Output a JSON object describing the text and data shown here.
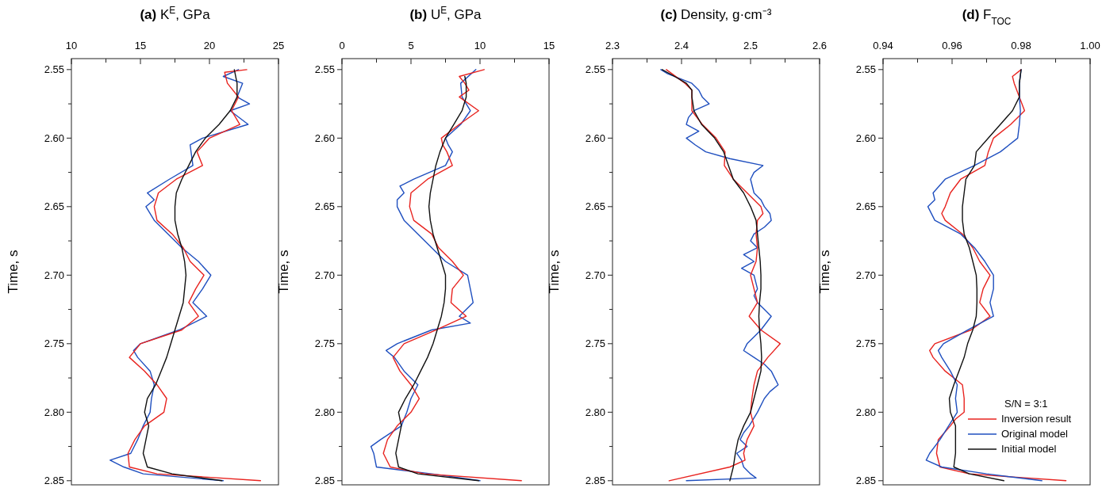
{
  "chart_data": [
    {
      "type": "line",
      "title": "(a) K$^{E}$, GPa",
      "ylabel": "Time, s",
      "xlim": [
        10,
        25
      ],
      "xticks": [
        10,
        {
          "value": 12.5,
          "label": null
        },
        15,
        {
          "value": 17.5,
          "label": null
        },
        20,
        {
          "value": 22.5,
          "label": null
        },
        25
      ],
      "ylim": [
        2.853,
        2.542
      ],
      "yticks": [
        2.55,
        {
          "value": 2.575,
          "label": null
        },
        {
          "value": 2.6,
          "label": "2.60"
        },
        {
          "value": 2.625,
          "label": null
        },
        2.65,
        {
          "value": 2.675,
          "label": null
        },
        {
          "value": 2.7,
          "label": "2.70"
        },
        {
          "value": 2.725,
          "label": null
        },
        2.75,
        {
          "value": 2.775,
          "label": null
        },
        {
          "value": 2.8,
          "label": "2.80"
        },
        {
          "value": 2.825,
          "label": null
        },
        2.85
      ],
      "series": [
        {
          "color": "#1f4fbf",
          "values": [
            2.55,
            2.555,
            2.56,
            2.57,
            2.575,
            2.58,
            2.59,
            2.6,
            2.605,
            2.62,
            2.63,
            2.64,
            2.645,
            2.65,
            2.66,
            2.67,
            2.68,
            2.69,
            2.7,
            2.71,
            2.72,
            2.73,
            2.74,
            2.75,
            2.755,
            2.76,
            2.77,
            2.78,
            2.79,
            2.8,
            2.81,
            2.82,
            2.83,
            2.835,
            2.84,
            2.845,
            2.85
          ],
          "x": [
            22.1,
            21.0,
            22.4,
            22.0,
            22.9,
            21.5,
            22.8,
            19.5,
            18.6,
            18.8,
            17.1,
            15.5,
            16.0,
            15.4,
            16.0,
            17.0,
            18.0,
            19.2,
            20.1,
            19.5,
            18.8,
            19.8,
            17.8,
            15.0,
            14.5,
            14.8,
            15.7,
            16.0,
            15.8,
            15.7,
            15.2,
            14.8,
            14.3,
            12.8,
            13.8,
            15.2,
            21.0
          ]
        },
        {
          "color": "#e8231f",
          "values": [
            2.55,
            2.552,
            2.56,
            2.57,
            2.58,
            2.59,
            2.6,
            2.61,
            2.62,
            2.63,
            2.64,
            2.65,
            2.66,
            2.67,
            2.68,
            2.69,
            2.7,
            2.71,
            2.72,
            2.73,
            2.74,
            2.75,
            2.76,
            2.77,
            2.78,
            2.79,
            2.8,
            2.81,
            2.82,
            2.83,
            2.84,
            2.845,
            2.85
          ],
          "x": [
            22.7,
            21.1,
            21.3,
            22.1,
            21.6,
            22.2,
            20.0,
            19.1,
            19.5,
            17.6,
            16.3,
            16.0,
            16.2,
            17.3,
            18.1,
            18.6,
            19.6,
            19.0,
            18.5,
            19.2,
            18.0,
            15.0,
            14.2,
            15.3,
            16.2,
            16.9,
            16.7,
            15.3,
            14.6,
            14.1,
            14.2,
            16.2,
            23.7
          ]
        },
        {
          "color": "#111111",
          "values": [
            2.55,
            2.56,
            2.57,
            2.58,
            2.59,
            2.6,
            2.61,
            2.62,
            2.63,
            2.64,
            2.65,
            2.66,
            2.67,
            2.68,
            2.69,
            2.7,
            2.71,
            2.72,
            2.73,
            2.74,
            2.75,
            2.76,
            2.77,
            2.78,
            2.79,
            2.8,
            2.81,
            2.82,
            2.83,
            2.84,
            2.845,
            2.85
          ],
          "x": [
            21.8,
            22.0,
            22.0,
            21.5,
            20.7,
            19.7,
            19.0,
            18.5,
            18.0,
            17.6,
            17.5,
            17.5,
            17.7,
            18.0,
            18.2,
            18.3,
            18.2,
            18.1,
            17.8,
            17.5,
            17.2,
            16.9,
            16.5,
            16.1,
            15.5,
            15.3,
            15.6,
            15.4,
            15.2,
            15.5,
            17.3,
            20.9
          ]
        }
      ]
    },
    {
      "type": "line",
      "title": "(b) U$^{E}$, GPa",
      "ylabel": "Time, s",
      "xlim": [
        0,
        15
      ],
      "xticks": [
        0,
        {
          "value": 2.5,
          "label": null
        },
        5,
        {
          "value": 7.5,
          "label": null
        },
        10,
        {
          "value": 12.5,
          "label": null
        },
        15
      ],
      "ylim": [
        2.853,
        2.542
      ],
      "yticks": [
        2.55,
        {
          "value": 2.575,
          "label": null
        },
        {
          "value": 2.6,
          "label": "2.60"
        },
        {
          "value": 2.625,
          "label": null
        },
        2.65,
        {
          "value": 2.675,
          "label": null
        },
        {
          "value": 2.7,
          "label": "2.70"
        },
        {
          "value": 2.725,
          "label": null
        },
        2.75,
        {
          "value": 2.775,
          "label": null
        },
        {
          "value": 2.8,
          "label": "2.80"
        },
        {
          "value": 2.825,
          "label": null
        },
        2.85
      ],
      "series": [
        {
          "color": "#1f4fbf",
          "values": [
            2.55,
            2.56,
            2.57,
            2.58,
            2.59,
            2.6,
            2.605,
            2.61,
            2.62,
            2.63,
            2.635,
            2.64,
            2.645,
            2.65,
            2.66,
            2.67,
            2.68,
            2.69,
            2.7,
            2.71,
            2.72,
            2.73,
            2.735,
            2.74,
            2.75,
            2.755,
            2.76,
            2.77,
            2.78,
            2.79,
            2.8,
            2.81,
            2.82,
            2.825,
            2.83,
            2.84,
            2.845,
            2.85
          ],
          "x": [
            9.7,
            8.6,
            8.7,
            9.3,
            8.6,
            7.5,
            7.7,
            8.0,
            7.5,
            5.2,
            4.2,
            4.5,
            4.0,
            4.0,
            4.5,
            5.5,
            6.5,
            7.5,
            9.1,
            9.3,
            9.5,
            8.5,
            9.3,
            6.5,
            4.0,
            3.2,
            3.8,
            4.5,
            5.5,
            5.0,
            4.7,
            4.3,
            2.8,
            2.1,
            2.3,
            2.5,
            6.5,
            10.0
          ]
        },
        {
          "color": "#e8231f",
          "values": [
            2.55,
            2.555,
            2.56,
            2.565,
            2.57,
            2.58,
            2.59,
            2.6,
            2.605,
            2.61,
            2.62,
            2.63,
            2.64,
            2.65,
            2.66,
            2.67,
            2.68,
            2.69,
            2.7,
            2.71,
            2.72,
            2.73,
            2.74,
            2.75,
            2.76,
            2.77,
            2.78,
            2.79,
            2.8,
            2.81,
            2.82,
            2.83,
            2.84,
            2.845,
            2.85
          ],
          "x": [
            10.3,
            8.5,
            8.9,
            9.2,
            8.5,
            9.9,
            8.5,
            7.2,
            7.3,
            7.6,
            8.0,
            6.2,
            5.0,
            4.9,
            5.2,
            6.5,
            7.0,
            8.0,
            8.8,
            8.0,
            7.9,
            9.0,
            6.8,
            4.5,
            3.7,
            4.2,
            5.0,
            5.6,
            5.0,
            4.0,
            3.3,
            3.0,
            3.5,
            6.0,
            13.0
          ]
        },
        {
          "color": "#111111",
          "values": [
            2.555,
            2.56,
            2.57,
            2.58,
            2.59,
            2.6,
            2.61,
            2.62,
            2.63,
            2.64,
            2.65,
            2.66,
            2.67,
            2.68,
            2.69,
            2.7,
            2.71,
            2.72,
            2.73,
            2.74,
            2.75,
            2.76,
            2.77,
            2.78,
            2.79,
            2.8,
            2.81,
            2.82,
            2.83,
            2.84,
            2.845,
            2.85
          ],
          "x": [
            8.9,
            9.0,
            9.0,
            8.7,
            8.1,
            7.5,
            7.1,
            6.8,
            6.6,
            6.4,
            6.3,
            6.4,
            6.6,
            6.9,
            7.2,
            7.5,
            7.5,
            7.4,
            7.2,
            6.9,
            6.6,
            6.2,
            5.7,
            5.2,
            4.6,
            4.1,
            4.3,
            4.1,
            3.9,
            4.1,
            5.5,
            9.9
          ]
        }
      ]
    },
    {
      "type": "line",
      "title": "(c) Density, g·cm⁻³",
      "ylabel": "Time, s",
      "xlim": [
        2.3,
        2.6
      ],
      "xticks": [
        {
          "value": 2.3,
          "label": "2.3"
        },
        {
          "value": 2.35,
          "label": null
        },
        {
          "value": 2.4,
          "label": "2.4"
        },
        {
          "value": 2.45,
          "label": null
        },
        {
          "value": 2.5,
          "label": "2.5"
        },
        {
          "value": 2.55,
          "label": null
        },
        {
          "value": 2.6,
          "label": "2.6"
        }
      ],
      "ylim": [
        2.853,
        2.542
      ],
      "yticks": [
        2.55,
        {
          "value": 2.575,
          "label": null
        },
        {
          "value": 2.6,
          "label": "2.60"
        },
        {
          "value": 2.625,
          "label": null
        },
        2.65,
        {
          "value": 2.675,
          "label": null
        },
        {
          "value": 2.7,
          "label": "2.70"
        },
        {
          "value": 2.725,
          "label": null
        },
        2.75,
        {
          "value": 2.775,
          "label": null
        },
        {
          "value": 2.8,
          "label": "2.80"
        },
        {
          "value": 2.825,
          "label": null
        },
        2.85
      ],
      "series": [
        {
          "color": "#1f4fbf",
          "values": [
            2.55,
            2.553,
            2.56,
            2.565,
            2.57,
            2.575,
            2.58,
            2.585,
            2.59,
            2.595,
            2.6,
            2.605,
            2.61,
            2.615,
            2.62,
            2.625,
            2.63,
            2.64,
            2.645,
            2.65,
            2.655,
            2.66,
            2.665,
            2.67,
            2.675,
            2.68,
            2.685,
            2.69,
            2.695,
            2.7,
            2.71,
            2.715,
            2.72,
            2.725,
            2.73,
            2.74,
            2.745,
            2.75,
            2.755,
            2.76,
            2.765,
            2.77,
            2.775,
            2.78,
            2.785,
            2.79,
            2.8,
            2.81,
            2.815,
            2.82,
            2.825,
            2.83,
            2.835,
            2.84,
            2.845,
            2.848,
            2.85
          ],
          "x": [
            2.37,
            2.38,
            2.415,
            2.425,
            2.43,
            2.44,
            2.418,
            2.41,
            2.407,
            2.425,
            2.407,
            2.42,
            2.435,
            2.47,
            2.518,
            2.505,
            2.5,
            2.505,
            2.515,
            2.52,
            2.528,
            2.53,
            2.52,
            2.505,
            2.5,
            2.51,
            2.49,
            2.505,
            2.487,
            2.505,
            2.51,
            2.505,
            2.51,
            2.52,
            2.53,
            2.515,
            2.505,
            2.495,
            2.49,
            2.505,
            2.52,
            2.53,
            2.535,
            2.54,
            2.528,
            2.52,
            2.51,
            2.498,
            2.49,
            2.485,
            2.495,
            2.48,
            2.487,
            2.49,
            2.5,
            2.508,
            2.407
          ]
        },
        {
          "color": "#e8231f",
          "values": [
            2.55,
            2.56,
            2.565,
            2.57,
            2.58,
            2.59,
            2.6,
            2.61,
            2.62,
            2.63,
            2.64,
            2.65,
            2.655,
            2.66,
            2.67,
            2.68,
            2.69,
            2.7,
            2.71,
            2.72,
            2.73,
            2.74,
            2.75,
            2.76,
            2.77,
            2.78,
            2.79,
            2.8,
            2.81,
            2.82,
            2.83,
            2.835,
            2.84,
            2.85
          ],
          "x": [
            2.378,
            2.405,
            2.415,
            2.415,
            2.415,
            2.43,
            2.45,
            2.463,
            2.462,
            2.475,
            2.495,
            2.515,
            2.518,
            2.51,
            2.508,
            2.51,
            2.508,
            2.5,
            2.505,
            2.51,
            2.498,
            2.515,
            2.543,
            2.525,
            2.51,
            2.505,
            2.502,
            2.5,
            2.505,
            2.495,
            2.49,
            2.492,
            2.47,
            2.382
          ]
        },
        {
          "color": "#111111",
          "values": [
            2.55,
            2.555,
            2.56,
            2.565,
            2.57,
            2.58,
            2.59,
            2.6,
            2.61,
            2.62,
            2.63,
            2.64,
            2.65,
            2.66,
            2.67,
            2.68,
            2.69,
            2.7,
            2.71,
            2.72,
            2.73,
            2.74,
            2.75,
            2.76,
            2.77,
            2.78,
            2.79,
            2.8,
            2.81,
            2.82,
            2.83,
            2.84,
            2.85
          ],
          "x": [
            2.372,
            2.39,
            2.407,
            2.415,
            2.415,
            2.418,
            2.429,
            2.448,
            2.461,
            2.468,
            2.475,
            2.49,
            2.5,
            2.508,
            2.51,
            2.512,
            2.514,
            2.515,
            2.515,
            2.513,
            2.512,
            2.513,
            2.515,
            2.516,
            2.515,
            2.51,
            2.505,
            2.5,
            2.49,
            2.482,
            2.478,
            2.475,
            2.47
          ]
        }
      ]
    },
    {
      "type": "line",
      "title": "(d) F$_{TOC}$",
      "ylabel": "Time, s",
      "xlim": [
        0.94,
        1.0
      ],
      "xticks": [
        {
          "value": 0.94,
          "label": "0.94"
        },
        {
          "value": 0.95,
          "label": null
        },
        {
          "value": 0.96,
          "label": "0.96"
        },
        {
          "value": 0.97,
          "label": null
        },
        {
          "value": 0.98,
          "label": "0.98"
        },
        {
          "value": 0.99,
          "label": null
        },
        {
          "value": 1.0,
          "label": "1.00"
        }
      ],
      "ylim": [
        2.853,
        2.542
      ],
      "yticks": [
        2.55,
        {
          "value": 2.575,
          "label": null
        },
        {
          "value": 2.6,
          "label": "2.60"
        },
        {
          "value": 2.625,
          "label": null
        },
        2.65,
        {
          "value": 2.675,
          "label": null
        },
        {
          "value": 2.7,
          "label": "2.70"
        },
        {
          "value": 2.725,
          "label": null
        },
        2.75,
        {
          "value": 2.775,
          "label": null
        },
        {
          "value": 2.8,
          "label": "2.80"
        },
        {
          "value": 2.825,
          "label": null
        },
        2.85
      ],
      "legend": "bottom right",
      "legend_title": "S/N = 3:1",
      "series": [
        {
          "name": "Inversion result",
          "color": "#e8231f",
          "values": [
            2.55,
            2.555,
            2.56,
            2.57,
            2.58,
            2.59,
            2.6,
            2.61,
            2.62,
            2.63,
            2.64,
            2.65,
            2.655,
            2.66,
            2.67,
            2.68,
            2.69,
            2.7,
            2.71,
            2.72,
            2.73,
            2.74,
            2.75,
            2.755,
            2.76,
            2.77,
            2.78,
            2.79,
            2.8,
            2.805,
            2.81,
            2.82,
            2.83,
            2.84,
            2.845,
            2.85
          ],
          "x": [
            0.98,
            0.9775,
            0.978,
            0.9795,
            0.981,
            0.977,
            0.972,
            0.9705,
            0.9695,
            0.9625,
            0.9595,
            0.958,
            0.957,
            0.958,
            0.963,
            0.966,
            0.968,
            0.971,
            0.969,
            0.968,
            0.971,
            0.9655,
            0.955,
            0.9535,
            0.9545,
            0.958,
            0.963,
            0.9635,
            0.9635,
            0.961,
            0.9595,
            0.956,
            0.9555,
            0.9565,
            0.965,
            0.993
          ]
        },
        {
          "name": "Original model",
          "color": "#1f4fbf",
          "values": [
            2.55,
            2.56,
            2.57,
            2.58,
            2.59,
            2.6,
            2.61,
            2.62,
            2.63,
            2.64,
            2.645,
            2.65,
            2.66,
            2.67,
            2.68,
            2.69,
            2.7,
            2.71,
            2.72,
            2.73,
            2.74,
            2.75,
            2.755,
            2.76,
            2.77,
            2.78,
            2.79,
            2.8,
            2.81,
            2.82,
            2.83,
            2.835,
            2.84,
            2.845,
            2.85
          ],
          "x": [
            0.98,
            0.9795,
            0.9795,
            0.9798,
            0.9795,
            0.979,
            0.974,
            0.9665,
            0.958,
            0.9545,
            0.955,
            0.953,
            0.955,
            0.9625,
            0.9665,
            0.9695,
            0.972,
            0.972,
            0.971,
            0.972,
            0.9645,
            0.9575,
            0.956,
            0.957,
            0.9595,
            0.9615,
            0.961,
            0.9615,
            0.959,
            0.9565,
            0.9535,
            0.9525,
            0.957,
            0.97,
            0.986
          ]
        },
        {
          "name": "Initial model",
          "color": "#111111",
          "values": [
            2.55,
            2.56,
            2.57,
            2.58,
            2.59,
            2.6,
            2.61,
            2.62,
            2.63,
            2.64,
            2.65,
            2.66,
            2.67,
            2.68,
            2.69,
            2.7,
            2.71,
            2.72,
            2.73,
            2.74,
            2.75,
            2.76,
            2.77,
            2.78,
            2.79,
            2.8,
            2.81,
            2.82,
            2.83,
            2.84,
            2.845,
            2.85
          ],
          "x": [
            0.98,
            0.9795,
            0.9795,
            0.9775,
            0.974,
            0.9705,
            0.967,
            0.9665,
            0.964,
            0.9635,
            0.963,
            0.963,
            0.9635,
            0.965,
            0.966,
            0.967,
            0.9672,
            0.9672,
            0.967,
            0.966,
            0.9645,
            0.9635,
            0.962,
            0.9605,
            0.9592,
            0.9595,
            0.961,
            0.961,
            0.961,
            0.9605,
            0.965,
            0.975
          ]
        }
      ]
    }
  ]
}
